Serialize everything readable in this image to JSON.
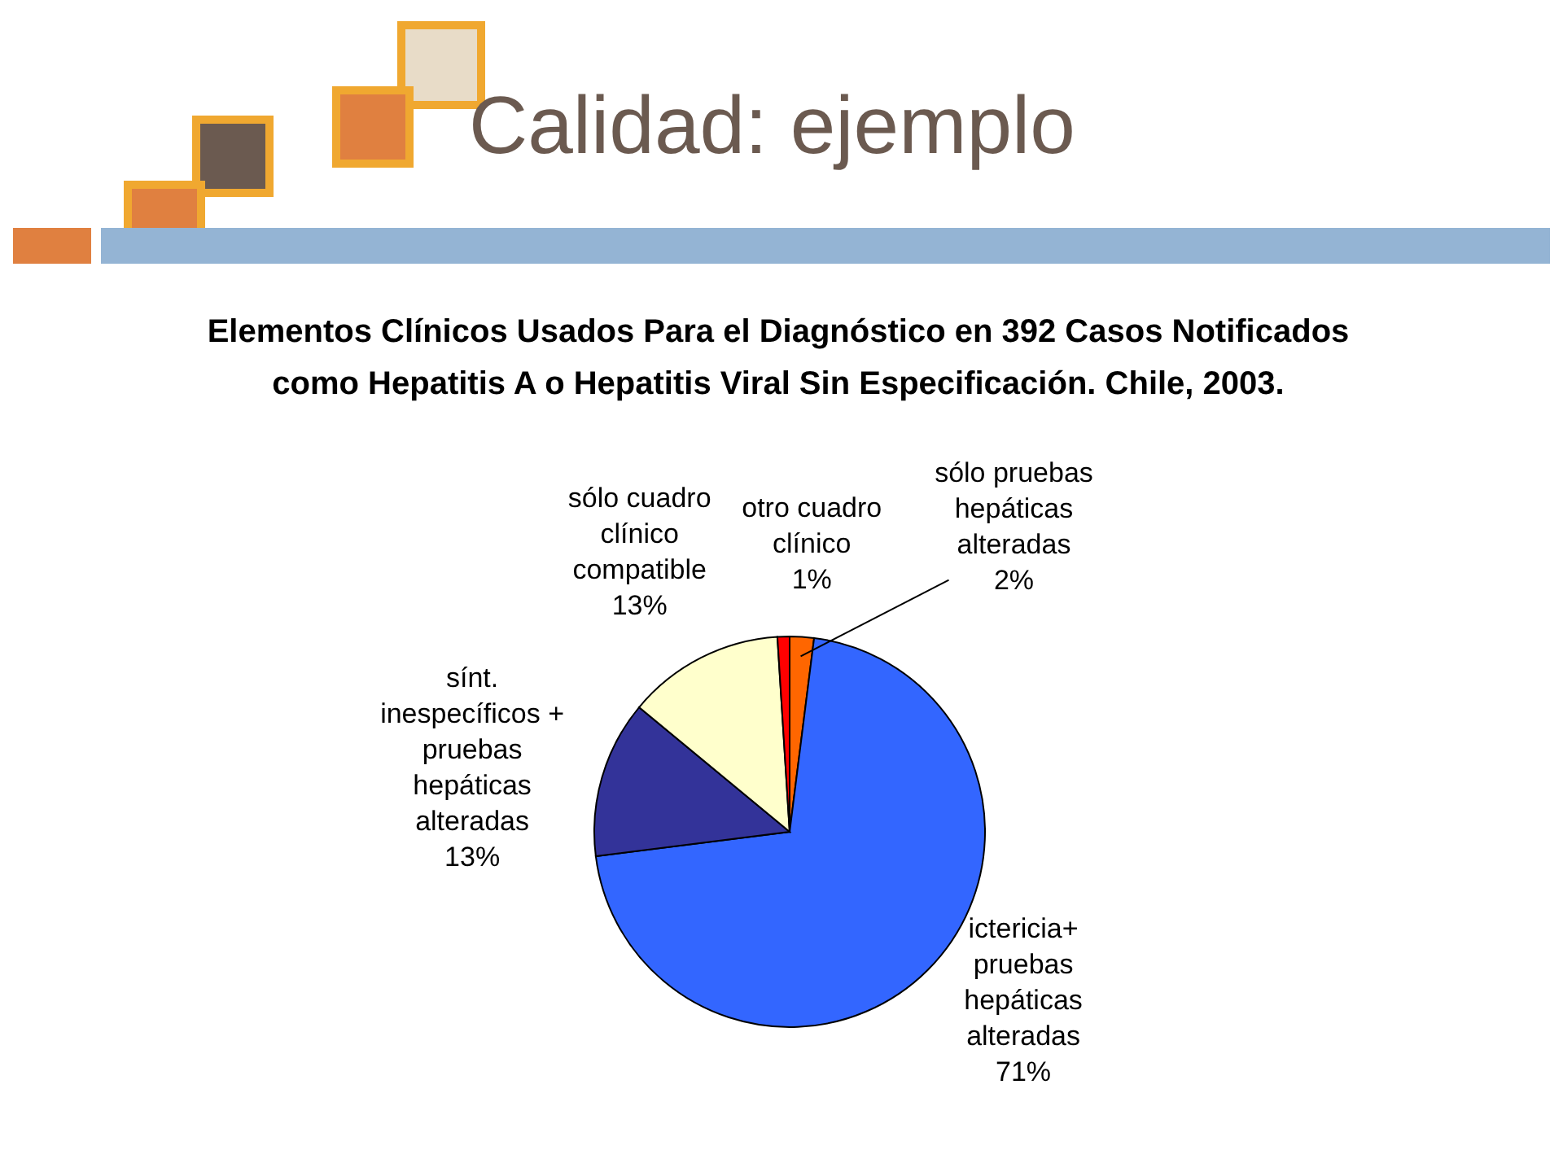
{
  "chart_data": {
    "type": "pie",
    "title": "Calidad: ejemplo",
    "subtitle": "Elementos Clínicos Usados Para el Diagnóstico en 392 Casos Notificados como Hepatitis A o Hepatitis Viral Sin Especificación. Chile, 2003.",
    "categories": [
      "sólo pruebas hepáticas alteradas",
      "ictericia+ pruebas hepáticas alteradas",
      "sínt. inespecíficos + pruebas hepáticas alteradas",
      "sólo cuadro clínico compatible",
      "otro cuadro clínico"
    ],
    "values": [
      2,
      71,
      13,
      13,
      1
    ],
    "value_labels": [
      "2%",
      "71%",
      "13%",
      "13%",
      "1%"
    ],
    "colors": [
      "#ff6600",
      "#3366ff",
      "#333399",
      "#ffffcc",
      "#ff0000"
    ],
    "legend": false
  }
}
